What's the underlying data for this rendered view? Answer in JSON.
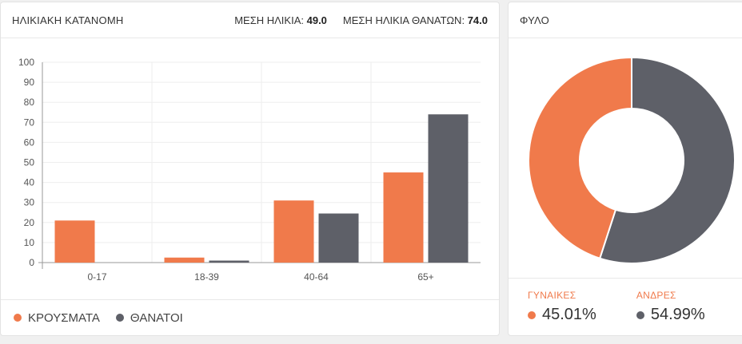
{
  "colors": {
    "cases": "#f07a4b",
    "deaths": "#5e6068"
  },
  "age_panel": {
    "title": "ΗΛΙΚΙΑΚΗ ΚΑΤΑΝΟΜΗ",
    "mean_age_label": "ΜΕΣΗ ΗΛΙΚΙΑ:",
    "mean_age_value": "49.0",
    "mean_death_age_label": "ΜΕΣΗ ΗΛΙΚΙΑ ΘΑΝΑΤΩΝ:",
    "mean_death_age_value": "74.0",
    "legend_cases": "ΚΡΟΥΣΜΑΤΑ",
    "legend_deaths": "ΘΑΝΑΤΟΙ"
  },
  "sex_panel": {
    "title": "ΦΥΛΟ",
    "women_label": "ΓΥΝΑΙΚΕΣ",
    "women_value": "45.01%",
    "men_label": "ΑΝΔΡΕΣ",
    "men_value": "54.99%"
  },
  "chart_data": [
    {
      "type": "bar",
      "categories": [
        "0-17",
        "18-39",
        "40-64",
        "65+"
      ],
      "series": [
        {
          "name": "ΚΡΟΥΣΜΑΤΑ",
          "values": [
            21,
            2.5,
            31,
            45
          ]
        },
        {
          "name": "ΘΑΝΑΤΟΙ",
          "values": [
            0,
            1,
            24.5,
            74
          ]
        }
      ],
      "ylim": [
        0,
        100
      ],
      "yticks": [
        0,
        10,
        20,
        30,
        40,
        50,
        60,
        70,
        80,
        90,
        100
      ],
      "grid": true,
      "legend": "bottom-left"
    },
    {
      "type": "pie",
      "donut": true,
      "labels": [
        "ΓΥΝΑΙΚΕΣ",
        "ΑΝΔΡΕΣ"
      ],
      "values": [
        45.01,
        54.99
      ]
    }
  ]
}
